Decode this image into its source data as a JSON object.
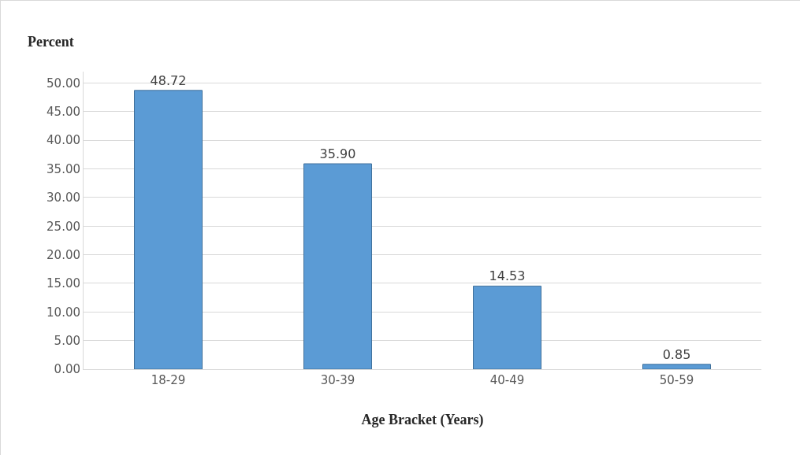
{
  "chart_data": {
    "type": "bar",
    "xlabel": "Age Bracket (Years)",
    "ylabel": "Percent",
    "categories": [
      "18-29",
      "30-39",
      "40-49",
      "50-59"
    ],
    "values": [
      48.72,
      35.9,
      14.53,
      0.85
    ],
    "value_labels": [
      "48.72",
      "35.90",
      "14.53",
      "0.85"
    ],
    "color": "#5b9bd5",
    "ylim": [
      0,
      52
    ],
    "yticks": [
      {
        "value": 0,
        "label": "0.00"
      },
      {
        "value": 5,
        "label": "5.00"
      },
      {
        "value": 10,
        "label": "10.00"
      },
      {
        "value": 15,
        "label": "15.00"
      },
      {
        "value": 20,
        "label": "20.00"
      },
      {
        "value": 25,
        "label": "25.00"
      },
      {
        "value": 30,
        "label": "30.00"
      },
      {
        "value": 35,
        "label": "35.00"
      },
      {
        "value": 40,
        "label": "40.00"
      },
      {
        "value": 45,
        "label": "45.00"
      },
      {
        "value": 50,
        "label": "50.00"
      }
    ],
    "grid": "y"
  }
}
